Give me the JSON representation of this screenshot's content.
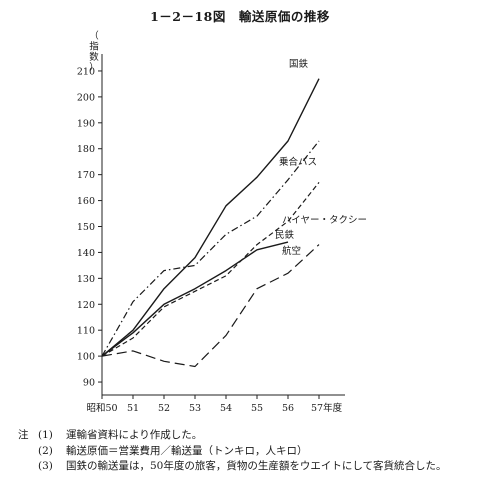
{
  "chart_data": {
    "type": "line",
    "title": "1－2－18図　輸送原価の推移",
    "ylabel": "（指数）",
    "xlabel": "",
    "x_unit": "年度",
    "categories": [
      "昭和50",
      "51",
      "52",
      "53",
      "54",
      "55",
      "56",
      "57"
    ],
    "ylim": [
      85,
      215
    ],
    "yticks": [
      90,
      100,
      110,
      120,
      130,
      140,
      150,
      160,
      170,
      180,
      190,
      200,
      210
    ],
    "grid": false,
    "legend": "inline labels at line ends",
    "series": [
      {
        "name": "国鉄",
        "style": "solid",
        "values": [
          100,
          110,
          126,
          138,
          158,
          169,
          183,
          207
        ]
      },
      {
        "name": "乗合バス",
        "style": "dashdot",
        "values": [
          100,
          121,
          133,
          135,
          147,
          154,
          168,
          183
        ]
      },
      {
        "name": "ハイヤー・タクシー",
        "style": "dashed",
        "values": [
          100,
          107,
          119,
          125,
          131,
          143,
          152,
          167
        ]
      },
      {
        "name": "民鉄",
        "style": "solid",
        "values": [
          100,
          109,
          120,
          126,
          133,
          141,
          144,
          null
        ]
      },
      {
        "name": "航空",
        "style": "longdash",
        "values": [
          100,
          102,
          98,
          96,
          108,
          126,
          132,
          143
        ]
      }
    ]
  },
  "notes": {
    "head": "注",
    "items": [
      {
        "num": "(1)",
        "text": "運輸省資料により作成した。"
      },
      {
        "num": "(2)",
        "text": "輸送原価＝営業費用／輸送量（トンキロ，人キロ）"
      },
      {
        "num": "(3)",
        "text": "国鉄の輸送量は，50年度の旅客，貨物の生産額をウエイトにして客貨統合した。"
      }
    ]
  }
}
